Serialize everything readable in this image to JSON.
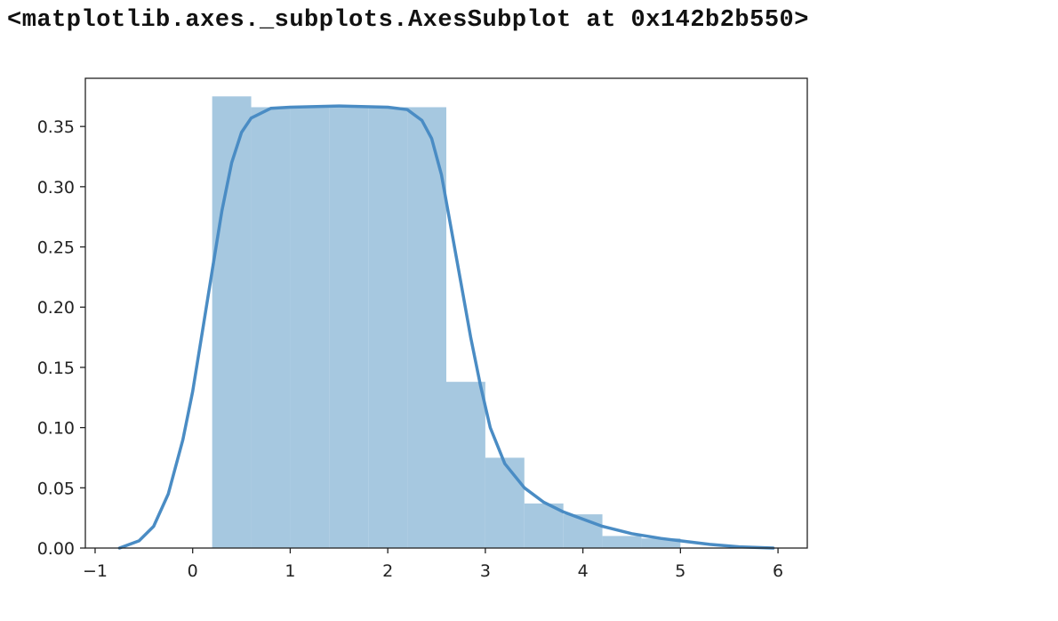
{
  "output_repr": "<matplotlib.axes._subplots.AxesSubplot at 0x142b2b550>",
  "colors": {
    "hist_fill": "#a6c8e0",
    "kde_line": "#4a8cc4",
    "axes": "#222222"
  },
  "chart_data": {
    "type": "histogram_kde",
    "title": "",
    "xlabel": "",
    "ylabel": "",
    "xlim": [
      -1.1,
      6.3
    ],
    "ylim": [
      0,
      0.39
    ],
    "xticks": [
      -1,
      0,
      1,
      2,
      3,
      4,
      5,
      6
    ],
    "xtick_labels": [
      "−1",
      "0",
      "1",
      "2",
      "3",
      "4",
      "5",
      "6"
    ],
    "yticks": [
      0,
      0.05,
      0.1,
      0.15,
      0.2,
      0.25,
      0.3,
      0.35
    ],
    "ytick_labels": [
      "0.00",
      "0.05",
      "0.10",
      "0.15",
      "0.20",
      "0.25",
      "0.30",
      "0.35"
    ],
    "grid": false,
    "bins": [
      {
        "x0": 0.2,
        "x1": 0.6,
        "value": 0.375
      },
      {
        "x0": 0.6,
        "x1": 1.0,
        "value": 0.366
      },
      {
        "x0": 1.0,
        "x1": 1.4,
        "value": 0.366
      },
      {
        "x0": 1.4,
        "x1": 1.8,
        "value": 0.366
      },
      {
        "x0": 1.8,
        "x1": 2.2,
        "value": 0.366
      },
      {
        "x0": 2.2,
        "x1": 2.6,
        "value": 0.366
      },
      {
        "x0": 2.6,
        "x1": 3.0,
        "value": 0.138
      },
      {
        "x0": 3.0,
        "x1": 3.4,
        "value": 0.075
      },
      {
        "x0": 3.4,
        "x1": 3.8,
        "value": 0.037
      },
      {
        "x0": 3.8,
        "x1": 4.2,
        "value": 0.028
      },
      {
        "x0": 4.2,
        "x1": 4.6,
        "value": 0.01
      },
      {
        "x0": 4.6,
        "x1": 5.0,
        "value": 0.008
      }
    ],
    "kde": {
      "x": [
        -0.75,
        -0.55,
        -0.4,
        -0.25,
        -0.1,
        0.0,
        0.1,
        0.2,
        0.3,
        0.4,
        0.5,
        0.6,
        0.8,
        1.0,
        1.5,
        2.0,
        2.2,
        2.35,
        2.45,
        2.55,
        2.65,
        2.75,
        2.85,
        2.95,
        3.05,
        3.2,
        3.4,
        3.6,
        3.8,
        4.0,
        4.2,
        4.5,
        4.8,
        5.0,
        5.3,
        5.6,
        5.95
      ],
      "y": [
        0.0,
        0.006,
        0.018,
        0.045,
        0.09,
        0.13,
        0.18,
        0.23,
        0.28,
        0.32,
        0.345,
        0.357,
        0.365,
        0.366,
        0.367,
        0.366,
        0.364,
        0.355,
        0.34,
        0.31,
        0.265,
        0.22,
        0.175,
        0.135,
        0.1,
        0.07,
        0.05,
        0.038,
        0.03,
        0.024,
        0.018,
        0.012,
        0.008,
        0.006,
        0.003,
        0.001,
        0.0
      ]
    }
  }
}
